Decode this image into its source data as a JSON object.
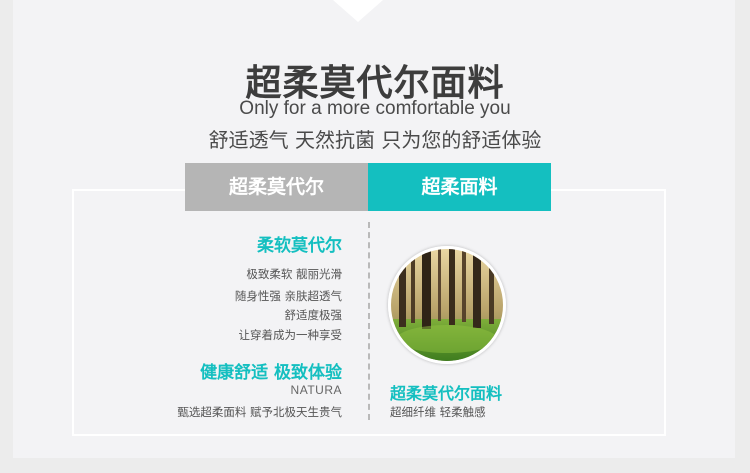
{
  "header": {
    "title": "超柔莫代尔面料",
    "subtitle_en": "Only for a more comfortable you",
    "subtitle_cn": "舒适透气  天然抗菌  只为您的舒适体验"
  },
  "tabs": {
    "left_label": "超柔莫代尔",
    "right_label": "超柔面料"
  },
  "left_column": {
    "feature_title": "柔软莫代尔",
    "feature_lines": [
      "极致柔软 靓丽光滑",
      "随身性强 亲肤超透气",
      "舒适度极强",
      "让穿着成为一种享受"
    ],
    "comfort_title": "健康舒适  极致体验",
    "natura": "NATURA",
    "select_text": "甄选超柔面料 赋予北极天生贵气"
  },
  "right_column": {
    "image_icon": "forest-photo",
    "fabric_title": "超柔莫代尔面料",
    "fabric_sub": "超细纤维 轻柔触感"
  },
  "colors": {
    "accent": "#14bfc0",
    "tab_gray": "#b5b5b5",
    "text_dark": "#3d3d3d"
  }
}
